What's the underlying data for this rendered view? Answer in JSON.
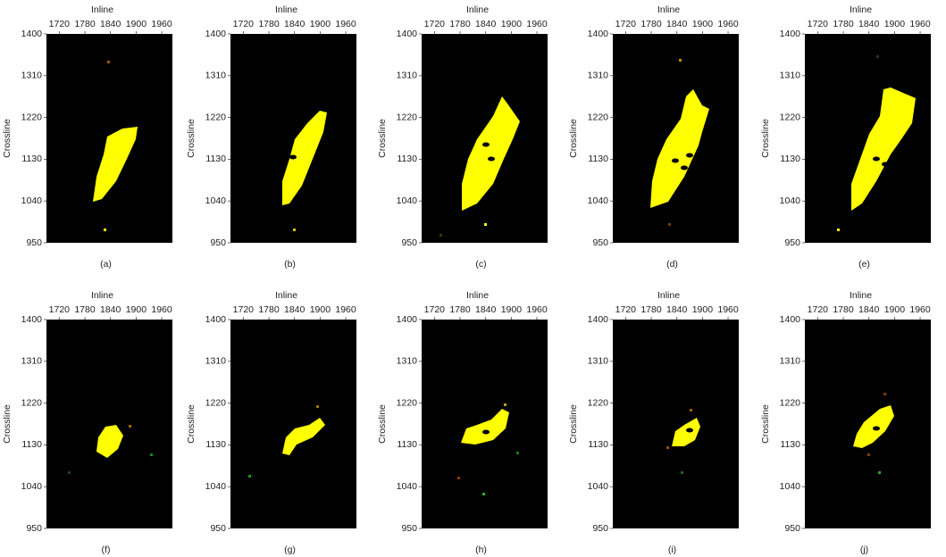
{
  "chart_data": [
    {
      "type": "image",
      "caption": "(a)",
      "xlabel": "Inline",
      "ylabel": "Crossline",
      "xlim": [
        1690,
        1985
      ],
      "ylim": [
        950,
        1400
      ],
      "xticks": [
        1720,
        1780,
        1840,
        1900,
        1960
      ],
      "yticks": [
        950,
        1040,
        1130,
        1220,
        1310,
        1400
      ]
    },
    {
      "type": "image",
      "caption": "(b)",
      "xlabel": "Inline",
      "ylabel": "Crossline",
      "xlim": [
        1690,
        1985
      ],
      "ylim": [
        950,
        1400
      ],
      "xticks": [
        1720,
        1780,
        1840,
        1900,
        1960
      ],
      "yticks": [
        950,
        1040,
        1130,
        1220,
        1310,
        1400
      ]
    },
    {
      "type": "image",
      "caption": "(c)",
      "xlabel": "Inline",
      "ylabel": "Crossline",
      "xlim": [
        1690,
        1985
      ],
      "ylim": [
        950,
        1400
      ],
      "xticks": [
        1720,
        1780,
        1840,
        1900,
        1960
      ],
      "yticks": [
        950,
        1040,
        1130,
        1220,
        1310,
        1400
      ]
    },
    {
      "type": "image",
      "caption": "(d)",
      "xlabel": "Inline",
      "ylabel": "Crossline",
      "xlim": [
        1690,
        1985
      ],
      "ylim": [
        950,
        1400
      ],
      "xticks": [
        1720,
        1780,
        1840,
        1900,
        1960
      ],
      "yticks": [
        950,
        1040,
        1130,
        1220,
        1310,
        1400
      ]
    },
    {
      "type": "image",
      "caption": "(e)",
      "xlabel": "Inline",
      "ylabel": "Crossline",
      "xlim": [
        1690,
        1985
      ],
      "ylim": [
        950,
        1400
      ],
      "xticks": [
        1720,
        1780,
        1840,
        1900,
        1960
      ],
      "yticks": [
        950,
        1040,
        1130,
        1220,
        1310,
        1400
      ]
    },
    {
      "type": "image",
      "caption": "(f)",
      "xlabel": "Inline",
      "ylabel": "Crossline",
      "xlim": [
        1690,
        1985
      ],
      "ylim": [
        950,
        1400
      ],
      "xticks": [
        1720,
        1780,
        1840,
        1900,
        1960
      ],
      "yticks": [
        950,
        1040,
        1130,
        1220,
        1310,
        1400
      ]
    },
    {
      "type": "image",
      "caption": "(g)",
      "xlabel": "Inline",
      "ylabel": "Crossline",
      "xlim": [
        1690,
        1985
      ],
      "ylim": [
        950,
        1400
      ],
      "xticks": [
        1720,
        1780,
        1840,
        1900,
        1960
      ],
      "yticks": [
        950,
        1040,
        1130,
        1220,
        1310,
        1400
      ]
    },
    {
      "type": "image",
      "caption": "(h)",
      "xlabel": "Inline",
      "ylabel": "Crossline",
      "xlim": [
        1690,
        1985
      ],
      "ylim": [
        950,
        1400
      ],
      "xticks": [
        1720,
        1780,
        1840,
        1900,
        1960
      ],
      "yticks": [
        950,
        1040,
        1130,
        1220,
        1310,
        1400
      ]
    },
    {
      "type": "image",
      "caption": "(i)",
      "xlabel": "Inline",
      "ylabel": "Crossline",
      "xlim": [
        1690,
        1985
      ],
      "ylim": [
        950,
        1400
      ],
      "xticks": [
        1720,
        1780,
        1840,
        1900,
        1960
      ],
      "yticks": [
        950,
        1040,
        1130,
        1220,
        1310,
        1400
      ]
    },
    {
      "type": "image",
      "caption": "(j)",
      "xlabel": "Inline",
      "ylabel": "Crossline",
      "xlim": [
        1690,
        1985
      ],
      "ylim": [
        950,
        1400
      ],
      "xticks": [
        1720,
        1780,
        1840,
        1900,
        1960
      ],
      "yticks": [
        950,
        1040,
        1130,
        1220,
        1310,
        1400
      ]
    }
  ]
}
